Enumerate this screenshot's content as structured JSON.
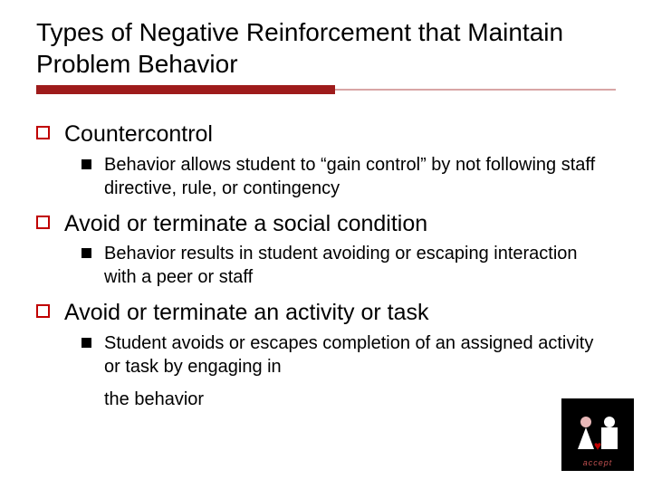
{
  "colors": {
    "accent": "#c00000",
    "rule_dark": "#9e1b1b",
    "rule_light": "#d8a5a5",
    "text": "#000000",
    "background": "#ffffff",
    "logo_bg": "#000000"
  },
  "typography": {
    "title_fontsize": 28,
    "lvl1_fontsize": 25,
    "lvl2_fontsize": 20,
    "font_family": "Verdana"
  },
  "title": "Types of Negative Reinforcement that Maintain Problem Behavior",
  "items": [
    {
      "label": "Countercontrol",
      "sub": [
        "Behavior allows student to “gain control” by not following staff directive, rule, or contingency"
      ]
    },
    {
      "label": "Avoid or terminate a social condition",
      "sub": [
        "Behavior results in student avoiding or escaping interaction with a peer or staff"
      ]
    },
    {
      "label": "Avoid or terminate an activity or task",
      "sub": [
        "Student avoids or escapes completion of an assigned activity or task by engaging in",
        "the behavior"
      ]
    }
  ],
  "logo": {
    "caption": "accept",
    "heart": "♥"
  }
}
